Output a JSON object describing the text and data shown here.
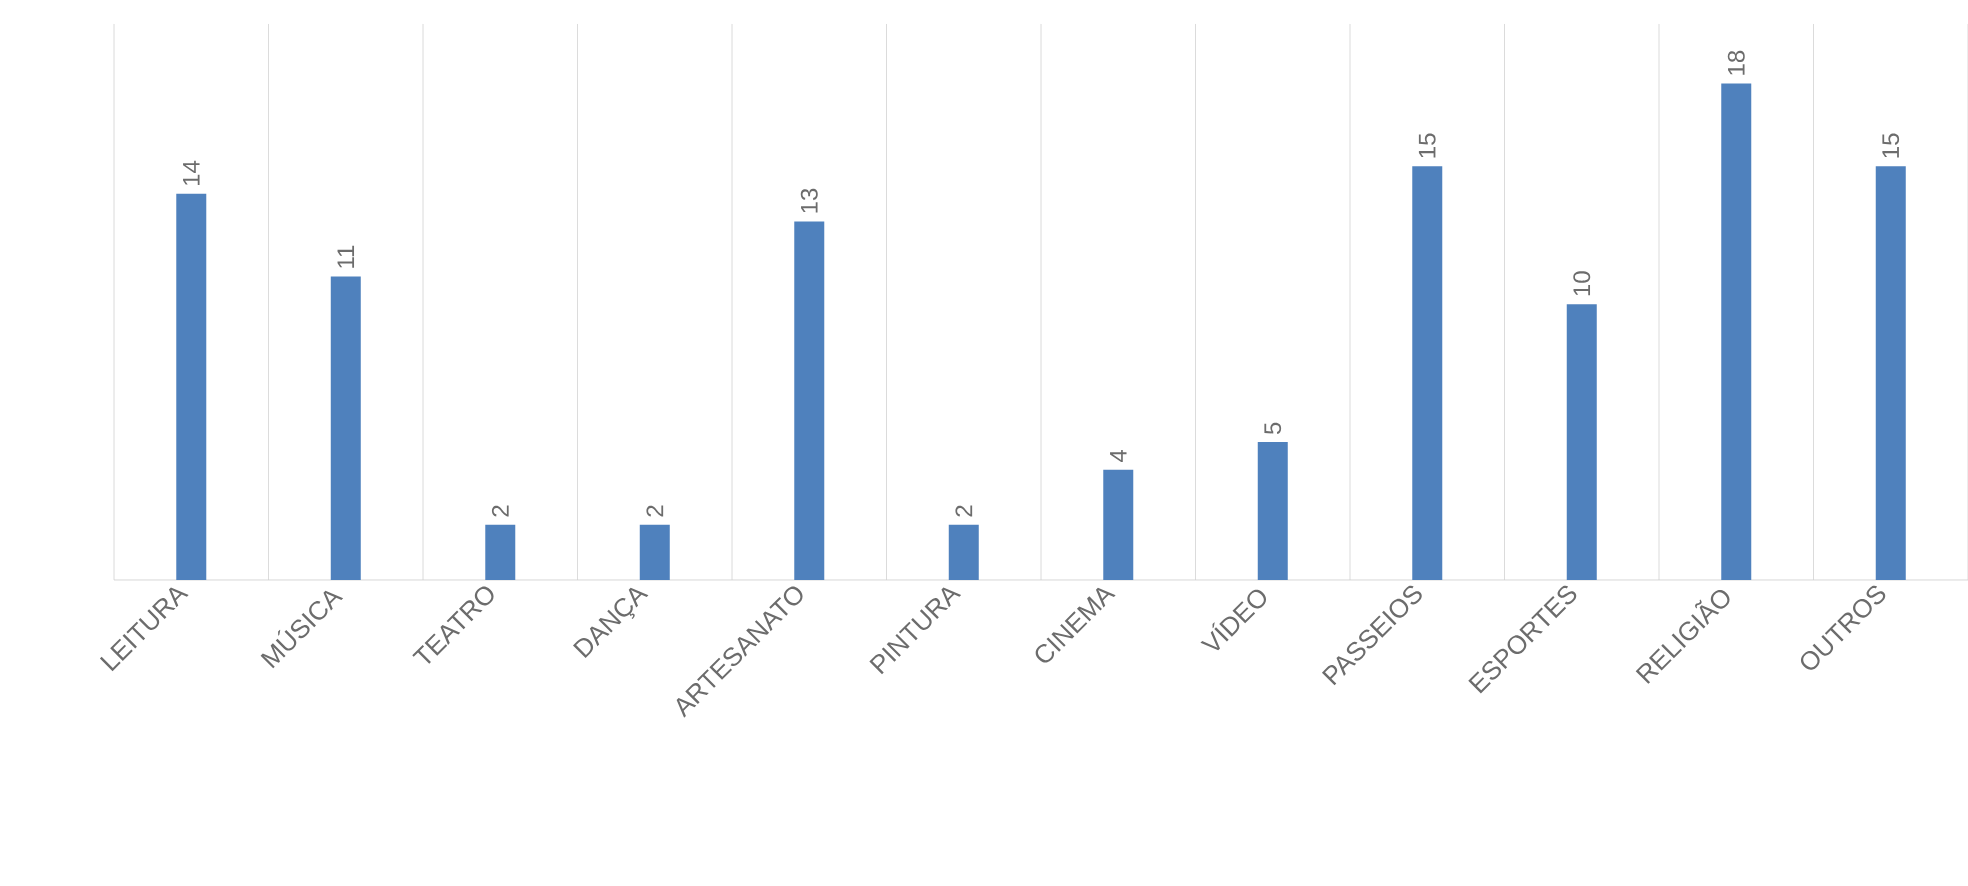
{
  "chart_data": {
    "type": "bar",
    "categories": [
      "LEITURA",
      "MÚSICA",
      "TEATRO",
      "DANÇA",
      "ARTESANATO",
      "PINTURA",
      "CINEMA",
      "VÍDEO",
      "PASSEIOS",
      "ESPORTES",
      "RELIGIÃO",
      "OUTROS"
    ],
    "values": [
      14,
      11,
      2,
      2,
      13,
      2,
      4,
      5,
      15,
      10,
      18,
      15
    ],
    "color": "#4f81bd",
    "data_labels": true,
    "grid": "x"
  }
}
